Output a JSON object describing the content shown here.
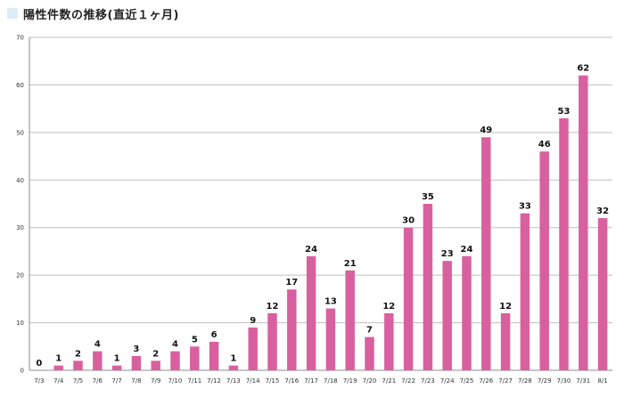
{
  "header": {
    "title": "陽性件数の推移(直近１ヶ月)"
  },
  "colors": {
    "bar": "#d9609f",
    "grid": "#bfbfbf",
    "axis": "#8c8c8c",
    "marker": "#dbeef5"
  },
  "chart_data": {
    "type": "bar",
    "title": "陽性件数の推移(直近１ヶ月)",
    "categories": [
      "7/3",
      "7/4",
      "7/5",
      "7/6",
      "7/7",
      "7/8",
      "7/9",
      "7/10",
      "7/11",
      "7/12",
      "7/13",
      "7/14",
      "7/15",
      "7/16",
      "7/17",
      "7/18",
      "7/19",
      "7/20",
      "7/21",
      "7/22",
      "7/23",
      "7/24",
      "7/25",
      "7/26",
      "7/27",
      "7/28",
      "7/29",
      "7/30",
      "7/31",
      "8/1"
    ],
    "values": [
      0,
      1,
      2,
      4,
      1,
      3,
      2,
      4,
      5,
      6,
      1,
      9,
      12,
      17,
      24,
      13,
      21,
      7,
      12,
      30,
      35,
      23,
      24,
      49,
      12,
      33,
      46,
      53,
      62,
      32
    ],
    "data_labels": [
      "0",
      "1",
      "2",
      "4",
      "1",
      "3",
      "2",
      "4",
      "5",
      "6",
      "1",
      "9",
      "12",
      "17",
      "24",
      "13",
      "21",
      "7",
      "12",
      "30",
      "35",
      "23",
      "24",
      "49",
      "12",
      "33",
      "46",
      "53",
      "62",
      "32"
    ],
    "ylim": [
      0,
      70
    ],
    "yticks": [
      "0",
      "10",
      "20",
      "30",
      "40",
      "50",
      "60",
      "70"
    ],
    "grid": true,
    "legend": "none"
  }
}
